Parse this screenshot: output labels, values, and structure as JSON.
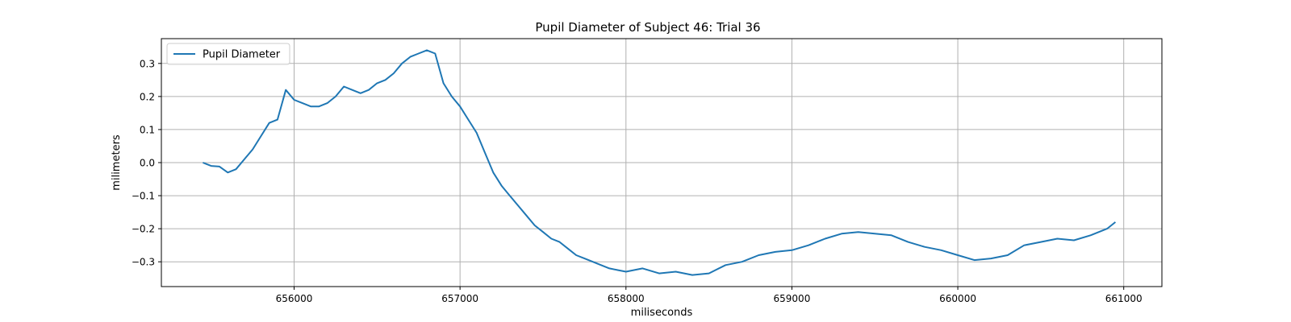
{
  "chart_data": {
    "type": "line",
    "title": "Pupil Diameter of Subject 46: Trial 36",
    "xlabel": "miliseconds",
    "ylabel": "milimeters",
    "xlim": [
      655200,
      661230
    ],
    "ylim": [
      -0.375,
      0.375
    ],
    "xticks": [
      656000,
      657000,
      658000,
      659000,
      660000,
      661000
    ],
    "yticks": [
      -0.3,
      -0.2,
      -0.1,
      0.0,
      0.1,
      0.2,
      0.3
    ],
    "ytick_labels": [
      "−0.3",
      "−0.2",
      "−0.1",
      "0.0",
      "0.1",
      "0.2",
      "0.3"
    ],
    "grid": true,
    "legend_placement": "top-left",
    "series": [
      {
        "name": "Pupil Diameter",
        "color": "#1f77b4",
        "x": [
          655450,
          655500,
          655550,
          655600,
          655650,
          655700,
          655750,
          655800,
          655850,
          655900,
          655950,
          656000,
          656050,
          656100,
          656150,
          656200,
          656250,
          656300,
          656350,
          656400,
          656450,
          656500,
          656550,
          656600,
          656650,
          656700,
          656750,
          656800,
          656850,
          656900,
          656950,
          657000,
          657050,
          657100,
          657150,
          657200,
          657250,
          657300,
          657350,
          657400,
          657450,
          657500,
          657550,
          657600,
          657650,
          657700,
          657750,
          657800,
          657850,
          657900,
          657950,
          658000,
          658100,
          658200,
          658300,
          658400,
          658500,
          658600,
          658700,
          658800,
          658900,
          659000,
          659100,
          659200,
          659300,
          659400,
          659500,
          659600,
          659700,
          659800,
          659900,
          660000,
          660100,
          660200,
          660300,
          660400,
          660500,
          660600,
          660700,
          660800,
          660900,
          660950
        ],
        "y": [
          0.0,
          -0.01,
          -0.012,
          -0.03,
          -0.02,
          0.01,
          0.04,
          0.08,
          0.12,
          0.13,
          0.22,
          0.19,
          0.18,
          0.17,
          0.17,
          0.18,
          0.2,
          0.23,
          0.22,
          0.21,
          0.22,
          0.24,
          0.25,
          0.27,
          0.3,
          0.32,
          0.33,
          0.34,
          0.33,
          0.24,
          0.2,
          0.17,
          0.13,
          0.09,
          0.03,
          -0.03,
          -0.07,
          -0.1,
          -0.13,
          -0.16,
          -0.19,
          -0.21,
          -0.23,
          -0.24,
          -0.26,
          -0.28,
          -0.29,
          -0.3,
          -0.31,
          -0.32,
          -0.325,
          -0.33,
          -0.32,
          -0.335,
          -0.33,
          -0.34,
          -0.335,
          -0.31,
          -0.3,
          -0.28,
          -0.27,
          -0.265,
          -0.25,
          -0.23,
          -0.215,
          -0.21,
          -0.215,
          -0.22,
          -0.24,
          -0.255,
          -0.265,
          -0.28,
          -0.295,
          -0.29,
          -0.28,
          -0.25,
          -0.24,
          -0.23,
          -0.235,
          -0.22,
          -0.2,
          -0.18
        ]
      }
    ]
  }
}
